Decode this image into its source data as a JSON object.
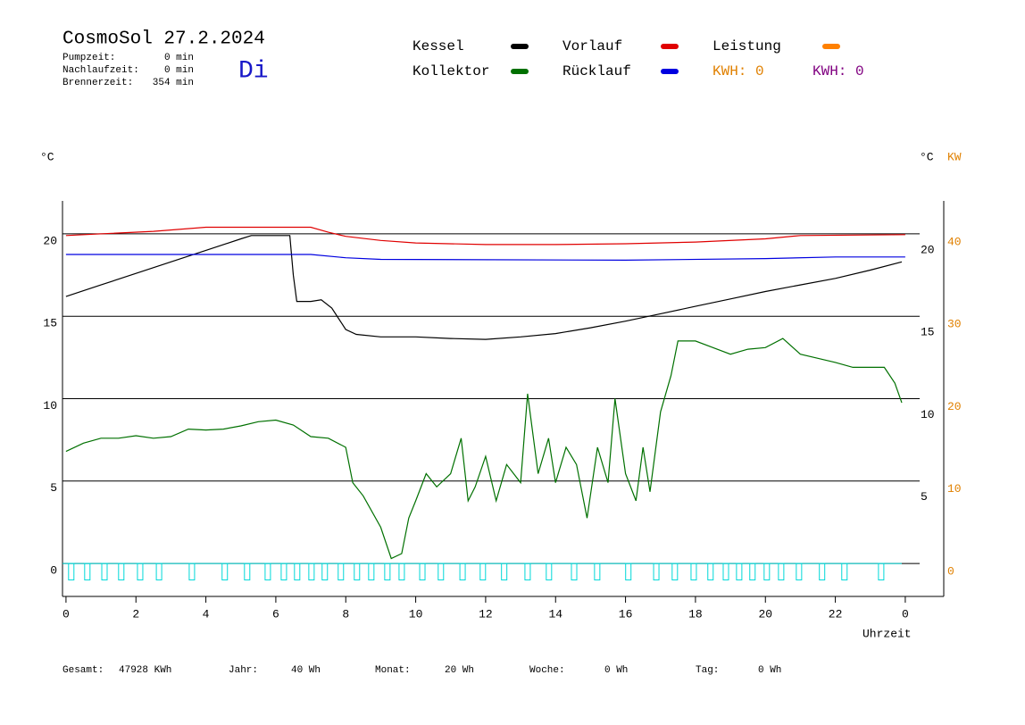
{
  "chart_data": {
    "type": "line",
    "title": "CosmoSol 27.2.2024",
    "day": "Di",
    "day_color": "#1818c8",
    "stats": [
      {
        "label": "Pumpzeit:",
        "value": "0 min"
      },
      {
        "label": "Nachlaufzeit:",
        "value": "0 min"
      },
      {
        "label": "Brennerzeit:",
        "value": "354 min"
      }
    ],
    "y_label": "°C",
    "y2_label_left": "°C",
    "y2_label": "KW",
    "y2_color": "#e08000",
    "x_label": "Uhrzeit",
    "kwh_labels": [
      {
        "text": "KWH: 0",
        "color": "#e08000"
      },
      {
        "text": "KWH: 0",
        "color": "#800080"
      }
    ],
    "xlim": [
      -0.1,
      25.1
    ],
    "xticks": [
      0,
      2,
      4,
      6,
      8,
      10,
      12,
      14,
      16,
      18,
      20,
      22,
      {
        "value": 24,
        "label": "0"
      }
    ],
    "ylim": [
      -2,
      22
    ],
    "yticks": [
      0,
      5,
      10,
      15,
      20
    ],
    "y_right_ticks": [
      5,
      10,
      15,
      20
    ],
    "y2lim": [
      -4,
      44
    ],
    "y2ticks": [
      0,
      10,
      20,
      30,
      40
    ],
    "grid": true,
    "series": [
      {
        "name": "Kessel",
        "color": "#000000",
        "x": [
          0,
          1,
          2,
          3,
          4,
          5,
          5.3,
          6.4,
          6.5,
          6.6,
          7,
          7.3,
          7.6,
          8,
          8.3,
          9,
          10,
          11,
          12,
          13,
          14,
          15,
          16,
          17,
          18,
          19,
          20,
          21,
          22,
          23,
          23.9
        ],
        "values": [
          16.2,
          16.9,
          17.6,
          18.3,
          19.0,
          19.7,
          19.9,
          19.9,
          17.5,
          15.9,
          15.9,
          16.0,
          15.5,
          14.2,
          13.9,
          13.75,
          13.75,
          13.65,
          13.6,
          13.75,
          13.95,
          14.3,
          14.7,
          15.15,
          15.6,
          16.05,
          16.5,
          16.9,
          17.3,
          17.8,
          18.3
        ]
      },
      {
        "name": "Vorlauf",
        "color": "#e00000",
        "x": [
          0,
          2.5,
          4,
          7,
          7.5,
          8,
          9,
          10,
          12,
          14,
          16,
          18,
          20,
          21,
          24
        ],
        "values": [
          19.9,
          20.15,
          20.4,
          20.4,
          20.1,
          19.85,
          19.6,
          19.45,
          19.35,
          19.35,
          19.4,
          19.5,
          19.7,
          19.9,
          19.95
        ]
      },
      {
        "name": "Leistung",
        "color": "#ff8000",
        "x": [],
        "values": []
      },
      {
        "name": "Kollektor",
        "color": "#007000",
        "x": [
          0,
          0.5,
          1,
          1.5,
          2,
          2.5,
          3,
          3.5,
          4,
          4.5,
          5,
          5.5,
          6,
          6.5,
          7,
          7.5,
          8,
          8.2,
          8.5,
          9,
          9.3,
          9.6,
          9.8,
          10,
          10.3,
          10.6,
          11,
          11.3,
          11.5,
          11.7,
          12,
          12.3,
          12.6,
          13,
          13.2,
          13.5,
          13.8,
          14,
          14.3,
          14.6,
          14.9,
          15.2,
          15.5,
          15.7,
          16,
          16.3,
          16.5,
          16.7,
          17,
          17.3,
          17.5,
          18,
          18.5,
          19,
          19.5,
          20,
          20.5,
          21,
          21.5,
          22,
          22.5,
          23,
          23.4,
          23.7,
          23.9
        ],
        "values": [
          6.8,
          7.3,
          7.6,
          7.6,
          7.75,
          7.6,
          7.7,
          8.15,
          8.1,
          8.15,
          8.35,
          8.6,
          8.7,
          8.4,
          7.7,
          7.6,
          7.05,
          4.9,
          4.1,
          2.2,
          0.3,
          0.6,
          2.75,
          3.8,
          5.45,
          4.65,
          5.45,
          7.6,
          3.8,
          4.65,
          6.5,
          3.8,
          6.0,
          4.9,
          10.3,
          5.45,
          7.6,
          4.9,
          7.05,
          6.0,
          2.75,
          7.05,
          4.9,
          10.0,
          5.45,
          3.8,
          7.05,
          4.35,
          9.2,
          11.4,
          13.5,
          13.5,
          13.1,
          12.7,
          13.0,
          13.1,
          13.65,
          12.7,
          12.45,
          12.2,
          11.9,
          11.9,
          11.9,
          10.95,
          9.75
        ]
      },
      {
        "name": "Rücklauf",
        "color": "#0000e0",
        "x": [
          0,
          7,
          8,
          9,
          16,
          20,
          22,
          24
        ],
        "values": [
          18.75,
          18.75,
          18.55,
          18.45,
          18.4,
          18.5,
          18.6,
          18.6
        ]
      }
    ],
    "pulses": {
      "color": "#00d8d8",
      "x": [
        0.15,
        0.61,
        1.1,
        1.58,
        2.12,
        2.66,
        3.6,
        4.54,
        5.18,
        5.77,
        6.23,
        6.61,
        7.02,
        7.4,
        7.86,
        8.32,
        8.73,
        9.19,
        9.6,
        10.19,
        10.72,
        11.34,
        11.92,
        12.53,
        13.2,
        13.81,
        14.53,
        15.19,
        16.08,
        16.88,
        17.41,
        17.95,
        18.43,
        18.87,
        19.25,
        19.63,
        20.04,
        20.45,
        20.96,
        21.62,
        22.26,
        23.31
      ],
      "values": [
        -1,
        -1,
        -1,
        -1,
        -1,
        -1,
        -1,
        -1,
        -1,
        -1,
        -1,
        -1,
        -1,
        -1,
        -1,
        -1,
        -1,
        -1,
        -1,
        -1,
        -1,
        -1,
        -1,
        -1,
        -1,
        -1,
        -1,
        -1,
        -1,
        -1,
        -1,
        -1,
        -1,
        -1,
        -1,
        -1,
        -1,
        -1,
        -1,
        -1,
        -1,
        -1
      ]
    },
    "footer": [
      {
        "label": "Gesamt:",
        "value": "47928 KWh"
      },
      {
        "label": "Jahr:",
        "value": "40 Wh"
      },
      {
        "label": "Monat:",
        "value": "20 Wh"
      },
      {
        "label": "Woche:",
        "value": "0 Wh"
      },
      {
        "label": "Tag:",
        "value": "0 Wh"
      }
    ]
  }
}
